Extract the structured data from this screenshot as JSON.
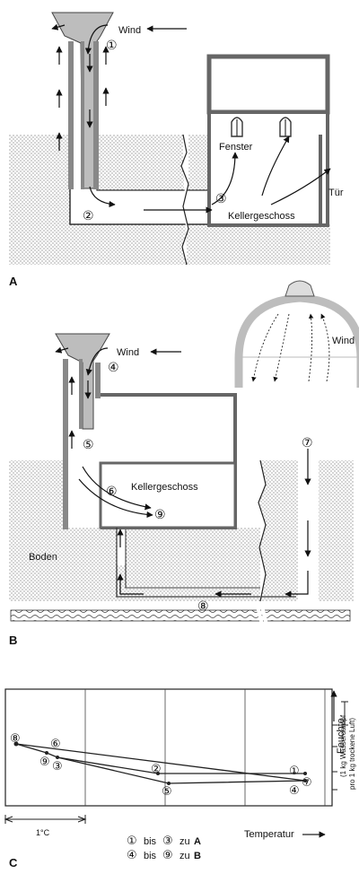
{
  "panelA": {
    "letter": "A",
    "wind": "Wind",
    "window": "Fenster",
    "door": "Tür",
    "basement": "Kellergeschoss",
    "markers": [
      "①",
      "②",
      "③"
    ]
  },
  "panelB": {
    "letter": "B",
    "wind": "Wind",
    "wind_dome": "Wind",
    "basement": "Kellergeschoss",
    "ground": "Boden",
    "markers": [
      "④",
      "⑤",
      "⑥",
      "⑦",
      "⑧",
      "⑨"
    ]
  },
  "panelC": {
    "letter": "C",
    "y_axis_label": "Feuchte",
    "y_scale_note_1": "(1 kg Wasserdampf",
    "y_scale_note_2": "pro 1 kg trockene Luft)",
    "x_axis_label": "Temperatur",
    "x_scale_label": "1°C",
    "legend_1_from": "①",
    "legend_1_mid": "bis",
    "legend_1_to": "③",
    "legend_1_suffix": "zu",
    "legend_1_target": "A",
    "legend_2_from": "④",
    "legend_2_mid": "bis",
    "legend_2_to": "⑨",
    "legend_2_suffix": "zu",
    "legend_2_target": "B",
    "point_labels": [
      "①",
      "②",
      "③",
      "④",
      "⑤",
      "⑥",
      "⑦",
      "⑧",
      "⑨"
    ]
  }
}
